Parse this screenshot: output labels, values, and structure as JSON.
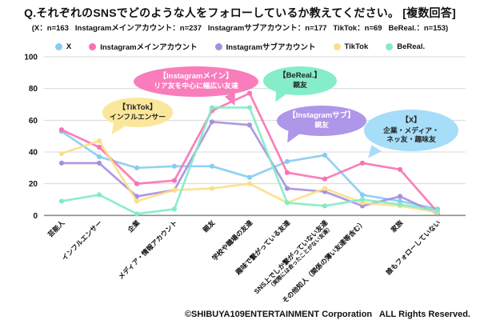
{
  "header": {
    "title": "Q.それぞれのSNSでどのような人をフォローしているか教えてください。 [複数回答]",
    "subtitle": "(X：n=163   Instagramメインアカウント：n=237   Instagramサブアカウント：n=177   TikTok：n=69   BeReal.：n=153)"
  },
  "chart_data": {
    "type": "line",
    "title": "Q.それぞれのSNSでどのような人をフォローしているか教えてください。 [複数回答]",
    "categories": [
      "芸能人",
      "インフルエンサー",
      "企業",
      "メディア・情報アカウント",
      "親友",
      "学校や職場の友達",
      "趣味で繋がっている友達",
      "SNS上でしか繋がっていない友達\n（実際には会ったことがない友達）",
      "その他知人（関係の薄い友達等含む）",
      "家族",
      "誰もフォローしていない"
    ],
    "series": [
      {
        "name": "X",
        "n": 163,
        "color": "#85CDF1",
        "values": [
          53,
          37,
          30,
          31,
          31,
          24,
          34,
          38,
          13,
          9,
          4
        ]
      },
      {
        "name": "Instagramメインアカウント",
        "n": 237,
        "color": "#F873B4",
        "values": [
          54,
          43,
          20,
          22,
          66,
          77,
          27,
          23,
          33,
          29,
          2
        ]
      },
      {
        "name": "Instagramサブアカウント",
        "n": 177,
        "color": "#A78FE0",
        "values": [
          33,
          33,
          12,
          16,
          59,
          57,
          17,
          15,
          6,
          12,
          1
        ]
      },
      {
        "name": "TikTok",
        "n": 69,
        "color": "#FBDF87",
        "values": [
          39,
          47,
          9,
          16,
          17,
          20,
          8,
          17,
          8,
          6,
          2
        ]
      },
      {
        "name": "BeReal.",
        "n": 153,
        "color": "#83EBC6",
        "values": [
          9,
          13,
          1,
          4,
          68,
          68,
          8,
          6,
          10,
          7,
          3
        ]
      }
    ],
    "ylim": [
      0,
      100
    ],
    "yticks": [
      0,
      20,
      40,
      60,
      80,
      100
    ],
    "grid": true,
    "legend_position": "top",
    "unit": "%"
  },
  "annotations": [
    {
      "title": "【TikTok】",
      "body": "インフルエンサー",
      "color": "#FBE79B",
      "text_color": "#222222"
    },
    {
      "title": "【Instagramメイン】",
      "body": "リア友を中心に幅広い友達",
      "color": "#F97CBB",
      "text_color": "#ffffff"
    },
    {
      "title": "【BeReal.】",
      "body": "親友",
      "color": "#85EDCA",
      "text_color": "#222222"
    },
    {
      "title": "【Instagramサブ】",
      "body": "親友",
      "color": "#AE96E8",
      "text_color": "#ffffff"
    },
    {
      "title": "【X】",
      "body": "企業・メディア・\nネッ友・趣味友",
      "color": "#A6DDF8",
      "text_color": "#222222"
    }
  ],
  "footer": {
    "copyright": "©SHIBUYA109ENTERTAINMENT Corporation   ALL Rights Reserved."
  }
}
